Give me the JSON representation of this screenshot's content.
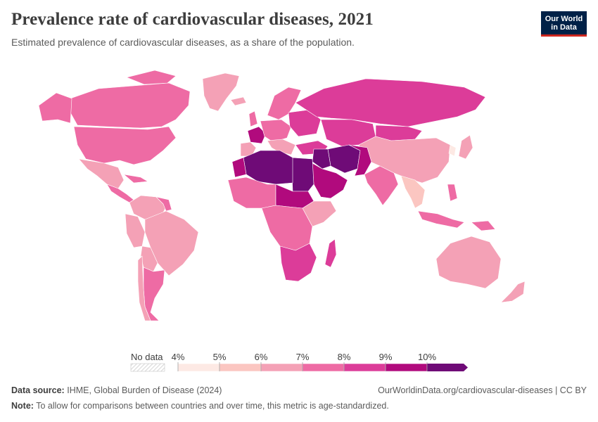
{
  "header": {
    "title": "Prevalence rate of cardiovascular diseases, 2021",
    "subtitle": "Estimated prevalence of cardiovascular diseases, as a share of the population."
  },
  "logo": {
    "line1": "Our World",
    "line2": "in Data"
  },
  "legend": {
    "no_data_label": "No data",
    "ticks": [
      "4%",
      "5%",
      "6%",
      "7%",
      "8%",
      "9%",
      "10%"
    ],
    "colors": [
      "#fde9e4",
      "#fbc6c1",
      "#f4a1b6",
      "#ee6ba4",
      "#dc3c99",
      "#b10a7d",
      "#6f0b77"
    ]
  },
  "colors": {
    "c4": "#fde9e4",
    "c5": "#fbc6c1",
    "c6": "#f4a1b6",
    "c7": "#ee6ba4",
    "c8": "#dc3c99",
    "c9": "#b10a7d",
    "c10": "#6f0b77"
  },
  "footer": {
    "source_label": "Data source:",
    "source_text": "IHME, Global Burden of Disease (2024)",
    "url": "OurWorldinData.org/cardiovascular-diseases | CC BY",
    "note_label": "Note:",
    "note_text": "To allow for comparisons between countries and over time, this metric is age-standardized."
  }
}
